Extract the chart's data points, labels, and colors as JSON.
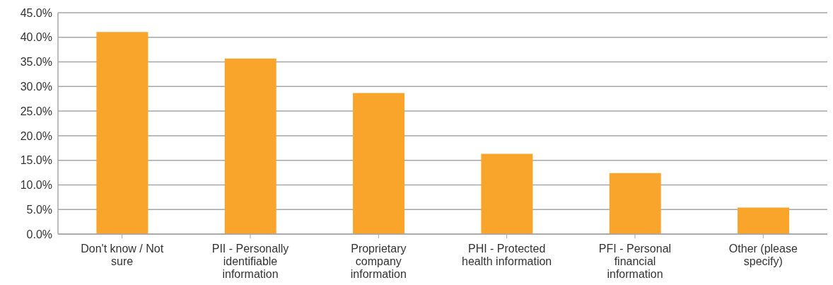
{
  "chart_data": {
    "type": "bar",
    "categories": [
      "Don't know / Not sure",
      "PII - Personally identifiable information",
      "Proprietary company information",
      "PHI - Protected health information",
      "PFI - Personal financial information",
      "Other (please specify)"
    ],
    "values": [
      41.1,
      35.7,
      28.7,
      16.3,
      12.4,
      5.4
    ],
    "color": "#f9a52b",
    "ylim": [
      0,
      45
    ],
    "yticks": [
      {
        "value": 0,
        "label": "0.0%"
      },
      {
        "value": 5,
        "label": "5.0%"
      },
      {
        "value": 10,
        "label": "10.0%"
      },
      {
        "value": 15,
        "label": "15.0%"
      },
      {
        "value": 20,
        "label": "20.0%"
      },
      {
        "value": 25,
        "label": "25.0%"
      },
      {
        "value": 30,
        "label": "30.0%"
      },
      {
        "value": 35,
        "label": "35.0%"
      },
      {
        "value": 40,
        "label": "40.0%"
      },
      {
        "value": 45,
        "label": "45.0%"
      }
    ],
    "grid": "y",
    "legend": false
  }
}
